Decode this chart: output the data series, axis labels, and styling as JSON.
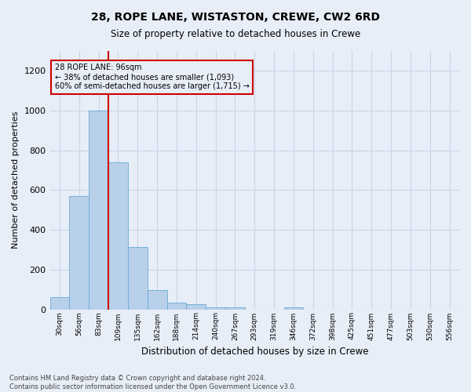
{
  "title": "28, ROPE LANE, WISTASTON, CREWE, CW2 6RD",
  "subtitle": "Size of property relative to detached houses in Crewe",
  "xlabel": "Distribution of detached houses by size in Crewe",
  "ylabel": "Number of detached properties",
  "bin_labels": [
    "30sqm",
    "56sqm",
    "83sqm",
    "109sqm",
    "135sqm",
    "162sqm",
    "188sqm",
    "214sqm",
    "240sqm",
    "267sqm",
    "293sqm",
    "319sqm",
    "346sqm",
    "372sqm",
    "398sqm",
    "425sqm",
    "451sqm",
    "477sqm",
    "503sqm",
    "530sqm",
    "556sqm"
  ],
  "bar_heights": [
    60,
    570,
    1000,
    740,
    315,
    95,
    35,
    25,
    10,
    10,
    0,
    0,
    10,
    0,
    0,
    0,
    0,
    0,
    0,
    0,
    0
  ],
  "bar_color": "#b8d0ea",
  "bar_edge_color": "#6aaad4",
  "grid_color": "#c8d4e8",
  "background_color": "#e8eef8",
  "ylim": [
    0,
    1300
  ],
  "yticks": [
    0,
    200,
    400,
    600,
    800,
    1000,
    1200
  ],
  "vline_x": 2.5,
  "vline_color": "#cc0000",
  "annotation_text": "28 ROPE LANE: 96sqm\n← 38% of detached houses are smaller (1,093)\n60% of semi-detached houses are larger (1,715) →",
  "annotation_box_color": "#cc0000",
  "footer_text": "Contains HM Land Registry data © Crown copyright and database right 2024.\nContains public sector information licensed under the Open Government Licence v3.0.",
  "figsize": [
    6.0,
    5.0
  ],
  "dpi": 100
}
